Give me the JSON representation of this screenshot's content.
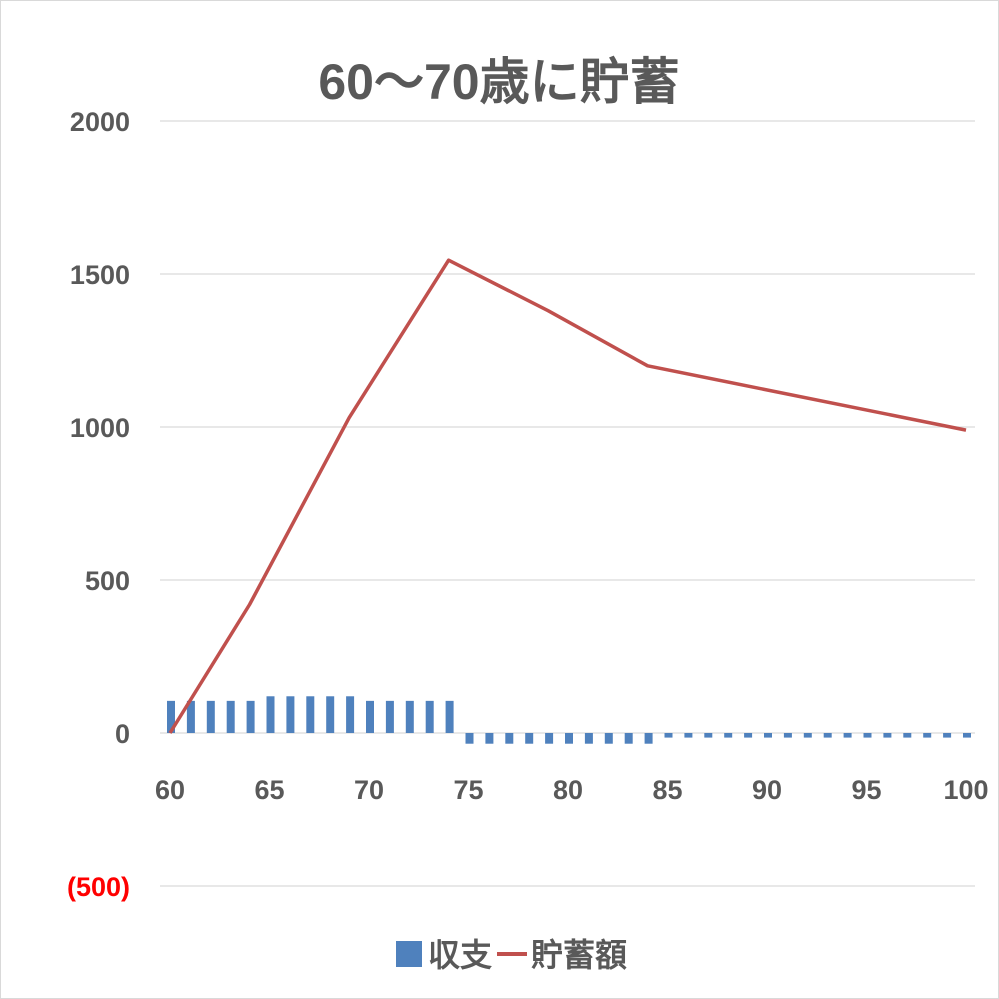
{
  "chart_data": {
    "type": "bar",
    "title": "60〜70歳に貯蓄",
    "xlabel": "",
    "ylabel": "",
    "x_ticks": [
      "60",
      "65",
      "70",
      "75",
      "80",
      "85",
      "90",
      "95",
      "100"
    ],
    "y_ticks": [
      "2000",
      "1500",
      "1000",
      "500",
      "0",
      "(500)"
    ],
    "ylim": [
      -500,
      2000
    ],
    "xlim": [
      60,
      100
    ],
    "grid": true,
    "legend_position": "bottom",
    "x": [
      60,
      61,
      62,
      63,
      64,
      65,
      66,
      67,
      68,
      69,
      70,
      71,
      72,
      73,
      74,
      75,
      76,
      77,
      78,
      79,
      80,
      81,
      82,
      83,
      84,
      85,
      86,
      87,
      88,
      89,
      90,
      91,
      92,
      93,
      94,
      95,
      96,
      97,
      98,
      99,
      100
    ],
    "series": [
      {
        "name": "収支",
        "kind": "bar",
        "color": "#4f81bd",
        "values": [
          105,
          105,
          105,
          105,
          105,
          120,
          120,
          120,
          120,
          120,
          105,
          105,
          105,
          105,
          105,
          -35,
          -35,
          -35,
          -35,
          -35,
          -35,
          -35,
          -35,
          -35,
          -35,
          -15,
          -15,
          -15,
          -15,
          -15,
          -15,
          -15,
          -15,
          -15,
          -15,
          -15,
          -15,
          -15,
          -15,
          -15,
          -15
        ]
      },
      {
        "name": "貯蓄額",
        "kind": "line",
        "color": "#c0504d",
        "points": [
          [
            60,
            0
          ],
          [
            64,
            420
          ],
          [
            69,
            1030
          ],
          [
            74,
            1545
          ],
          [
            79,
            1380
          ],
          [
            84,
            1200
          ],
          [
            100,
            990
          ]
        ]
      }
    ],
    "negative_tick_color": "#ff0000"
  }
}
